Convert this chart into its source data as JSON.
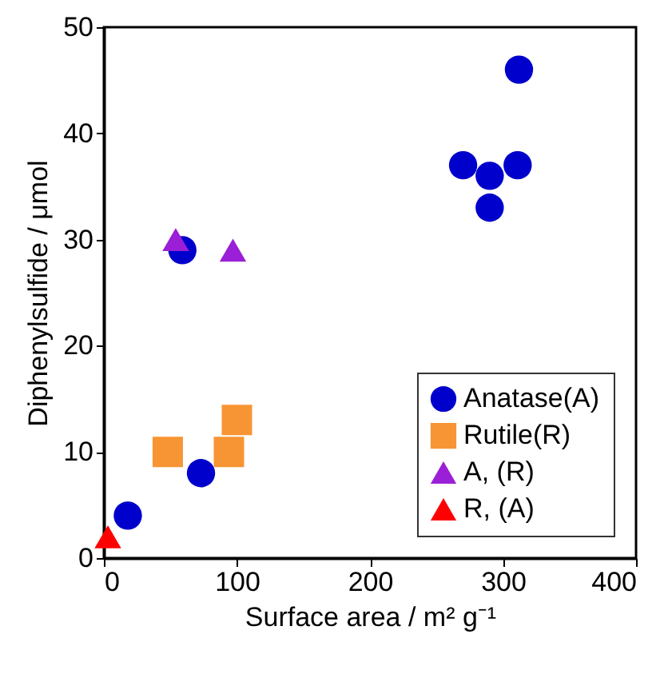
{
  "chart_data": {
    "type": "scatter",
    "xlabel": "Surface area / m² g⁻¹",
    "ylabel": "Diphenylsulfide / μmol",
    "xlim": [
      0,
      400
    ],
    "xticks": [
      0,
      100,
      200,
      300,
      400
    ],
    "ylim": [
      0,
      50
    ],
    "yticks": [
      0,
      10,
      20,
      30,
      40,
      50
    ],
    "grid": false,
    "legend": "bottom right",
    "series": [
      {
        "name": "Anatase(A)",
        "color": "#0000cc",
        "marker": "circle",
        "x": [
          18,
          73,
          59,
          270,
          290,
          311,
          290,
          312
        ],
        "values": [
          4,
          8,
          29,
          37,
          36,
          37,
          33,
          46
        ]
      },
      {
        "name": "Rutile(R)",
        "color": "#f79433",
        "marker": "square",
        "x": [
          48,
          94,
          100
        ],
        "values": [
          10,
          10,
          13
        ]
      },
      {
        "name": "A, (R)",
        "color": "#9a1fd6",
        "marker": "triangle",
        "x": [
          54,
          97
        ],
        "values": [
          30,
          29
        ]
      },
      {
        "name": "R, (A)",
        "color": "#ff0000",
        "marker": "triangle",
        "x": [
          3
        ],
        "values": [
          2
        ]
      }
    ]
  }
}
